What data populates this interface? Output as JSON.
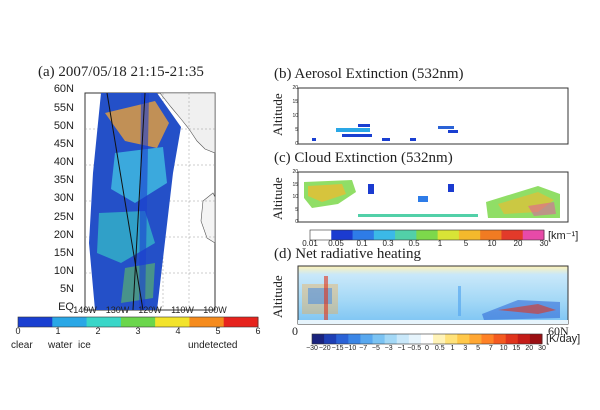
{
  "panel_a": {
    "title": "(a) 2007/05/18 21:15-21:35",
    "lat_labels": [
      "60N",
      "55N",
      "50N",
      "45N",
      "40N",
      "35N",
      "30N",
      "25N",
      "20N",
      "15N",
      "10N",
      "5N",
      "EQ"
    ],
    "lon_labels": [
      "140W",
      "130W",
      "120W",
      "110W",
      "100W"
    ],
    "colorbar_ticks": [
      "0",
      "1",
      "2",
      "3",
      "4",
      "5",
      "6"
    ],
    "colorbar_colors": [
      "#1a3fd1",
      "#2aa7e6",
      "#39d6c8",
      "#6bd64c",
      "#f2e32b",
      "#f58b1d",
      "#e6231d"
    ],
    "category_labels": [
      "clear",
      "water",
      "ice",
      "undetected"
    ]
  },
  "panel_b": {
    "title": "(b) Aerosol Extinction (532nm)",
    "ylabel": "Altitude",
    "yticks": [
      "20",
      "15",
      "10",
      "5",
      "0"
    ]
  },
  "panel_c": {
    "title": "(c) Cloud Extinction (532nm)",
    "ylabel": "Altitude",
    "yticks": [
      "20",
      "15",
      "10",
      "5",
      "0"
    ],
    "colorbar_ticks": [
      "0.01",
      "0.05",
      "0.1",
      "0.3",
      "0.5",
      "1",
      "5",
      "10",
      "20",
      "30"
    ],
    "colorbar_colors": [
      "#ffffff",
      "#1b3bd0",
      "#2e7ce8",
      "#3bb9e8",
      "#52d0a8",
      "#7dd84b",
      "#d8e436",
      "#f4b92c",
      "#f07b22",
      "#e23a2a",
      "#e84aa8"
    ],
    "unit": "[km⁻¹]"
  },
  "panel_d": {
    "title": "(d) Net radiative heating",
    "ylabel": "Altitude",
    "x_start": "0",
    "x_end": "60N",
    "colorbar_ticks": [
      "−30",
      "−20",
      "−15",
      "−10",
      "−7",
      "−5",
      "−3",
      "−1",
      "−0.5",
      "0",
      "0.5",
      "1",
      "3",
      "5",
      "7",
      "10",
      "15",
      "20",
      "30"
    ],
    "colorbar_colors": [
      "#1a237e",
      "#1e3fb5",
      "#2a62d6",
      "#3b86e6",
      "#58a8ef",
      "#7bc3f3",
      "#a3d8f6",
      "#c9e8fa",
      "#e6f4fc",
      "#ffffff",
      "#fff3b8",
      "#ffe27a",
      "#ffc84a",
      "#ffa733",
      "#ff8126",
      "#f45a20",
      "#e0341c",
      "#c41c18",
      "#9a0e12"
    ],
    "unit": "[K/day]"
  }
}
